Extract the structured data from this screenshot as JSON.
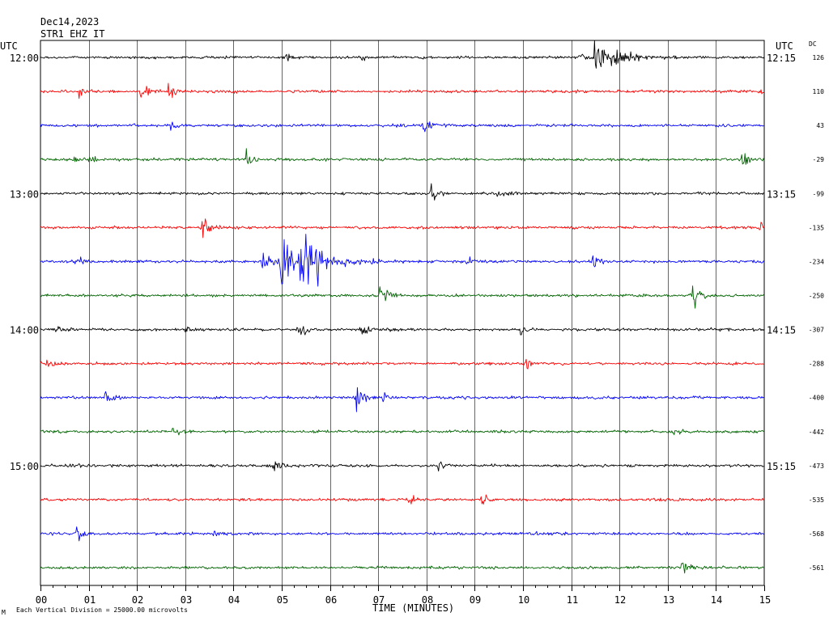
{
  "header": {
    "date": "Dec14,2023",
    "station": "STR1 EHZ IT"
  },
  "labels": {
    "utc_left": "UTC",
    "utc_right": "UTC",
    "dc": "DC",
    "xlabel": "TIME (MINUTES)",
    "footer": "Each Vertical Division = 25000.00 microvolts",
    "corner": "M"
  },
  "colors": {
    "cycle": [
      "#000000",
      "#ff0000",
      "#0000ff",
      "#006400"
    ],
    "grid": "#000000"
  },
  "chart_data": {
    "type": "line",
    "subtype": "helicorder",
    "title": "Dec14,2023 STR1 EHZ IT",
    "xlabel": "TIME (MINUTES)",
    "xlim": [
      0,
      15
    ],
    "x_ticks": [
      "00",
      "01",
      "02",
      "03",
      "04",
      "05",
      "06",
      "07",
      "08",
      "09",
      "10",
      "11",
      "12",
      "13",
      "14",
      "15"
    ],
    "vertical_division_microvolts": 25000.0,
    "row_minutes": 15,
    "left_time_labels": [
      {
        "row": 0,
        "text": "12:00"
      },
      {
        "row": 4,
        "text": "13:00"
      },
      {
        "row": 8,
        "text": "14:00"
      },
      {
        "row": 12,
        "text": "15:00"
      }
    ],
    "right_time_labels": [
      {
        "row": 0,
        "text": "12:15"
      },
      {
        "row": 4,
        "text": "13:15"
      },
      {
        "row": 8,
        "text": "14:15"
      },
      {
        "row": 12,
        "text": "15:15"
      }
    ],
    "dc_offsets": [
      126,
      110,
      43,
      -29,
      -99,
      -135,
      -234,
      -250,
      -307,
      -288,
      -400,
      -442,
      -473,
      -535,
      -568,
      -561
    ],
    "noise_level": 2.2,
    "rows": [
      {
        "row": 0,
        "events": [
          {
            "t": 5.1,
            "amp": 9
          },
          {
            "t": 6.6,
            "amp": 4
          },
          {
            "t": 11.2,
            "amp": 6
          },
          {
            "t": 11.5,
            "amp": 45
          }
        ]
      },
      {
        "row": 1,
        "events": [
          {
            "t": 0.8,
            "amp": 7
          },
          {
            "t": 2.1,
            "amp": 14
          },
          {
            "t": 2.65,
            "amp": 16
          },
          {
            "t": 4.0,
            "amp": 4
          },
          {
            "t": 14.9,
            "amp": 9
          }
        ]
      },
      {
        "row": 2,
        "events": [
          {
            "t": 2.7,
            "amp": 7
          },
          {
            "t": 7.3,
            "amp": 5
          },
          {
            "t": 7.95,
            "amp": 16
          }
        ]
      },
      {
        "row": 3,
        "events": [
          {
            "t": 0.7,
            "amp": 8
          },
          {
            "t": 1.0,
            "amp": 4
          },
          {
            "t": 4.25,
            "amp": 14
          },
          {
            "t": 14.55,
            "amp": 18
          }
        ]
      },
      {
        "row": 4,
        "events": [
          {
            "t": 8.1,
            "amp": 18
          },
          {
            "t": 9.5,
            "amp": 10
          }
        ]
      },
      {
        "row": 5,
        "events": [
          {
            "t": 3.35,
            "amp": 20
          },
          {
            "t": 14.9,
            "amp": 9
          }
        ]
      },
      {
        "row": 6,
        "events": [
          {
            "t": 0.75,
            "amp": 11
          },
          {
            "t": 4.6,
            "amp": 25
          },
          {
            "t": 4.95,
            "amp": 42
          },
          {
            "t": 5.4,
            "amp": 46
          },
          {
            "t": 5.75,
            "amp": 26
          },
          {
            "t": 6.3,
            "amp": 7
          },
          {
            "t": 6.9,
            "amp": 5
          },
          {
            "t": 8.85,
            "amp": 15
          },
          {
            "t": 11.45,
            "amp": 13
          }
        ]
      },
      {
        "row": 7,
        "events": [
          {
            "t": 7.05,
            "amp": 24
          },
          {
            "t": 13.5,
            "amp": 22
          }
        ]
      },
      {
        "row": 8,
        "events": [
          {
            "t": 0.3,
            "amp": 8
          },
          {
            "t": 3.0,
            "amp": 4
          },
          {
            "t": 5.35,
            "amp": 16
          },
          {
            "t": 6.65,
            "amp": 14
          },
          {
            "t": 7.2,
            "amp": 6
          },
          {
            "t": 9.95,
            "amp": 9
          }
        ]
      },
      {
        "row": 9,
        "events": [
          {
            "t": 0.15,
            "amp": 12
          },
          {
            "t": 10.05,
            "amp": 13
          }
        ]
      },
      {
        "row": 10,
        "events": [
          {
            "t": 1.35,
            "amp": 9
          },
          {
            "t": 6.55,
            "amp": 26
          },
          {
            "t": 7.1,
            "amp": 5
          }
        ]
      },
      {
        "row": 11,
        "events": [
          {
            "t": 2.75,
            "amp": 9
          },
          {
            "t": 13.1,
            "amp": 9
          }
        ]
      },
      {
        "row": 12,
        "events": [
          {
            "t": 0.6,
            "amp": 5
          },
          {
            "t": 4.85,
            "amp": 12
          },
          {
            "t": 8.25,
            "amp": 12
          }
        ]
      },
      {
        "row": 13,
        "events": [
          {
            "t": 7.6,
            "amp": 8
          },
          {
            "t": 9.15,
            "amp": 12
          }
        ]
      },
      {
        "row": 14,
        "events": [
          {
            "t": 0.75,
            "amp": 12
          },
          {
            "t": 3.6,
            "amp": 5
          },
          {
            "t": 10.15,
            "amp": 4
          }
        ]
      },
      {
        "row": 15,
        "events": [
          {
            "t": 13.3,
            "amp": 11
          }
        ]
      }
    ]
  }
}
